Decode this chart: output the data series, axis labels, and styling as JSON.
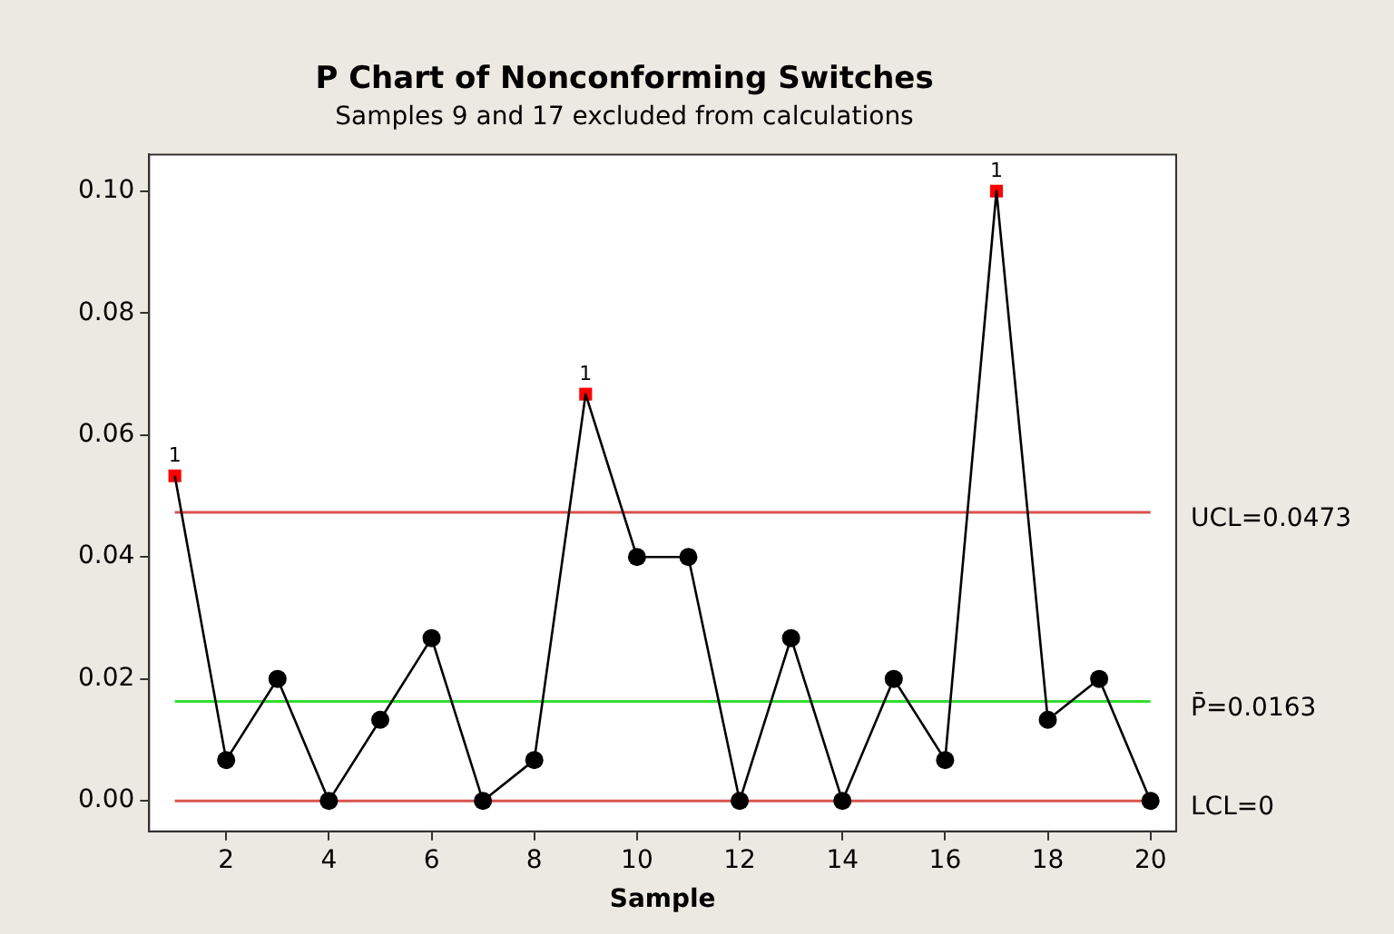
{
  "chart_data": {
    "type": "line",
    "title": "P Chart of Nonconforming Switches",
    "subtitle": "Samples 9 and 17 excluded from calculations",
    "xlabel": "Sample",
    "x": [
      1,
      2,
      3,
      4,
      5,
      6,
      7,
      8,
      9,
      10,
      11,
      12,
      13,
      14,
      15,
      16,
      17,
      18,
      19,
      20
    ],
    "series": [
      {
        "color": "#000000",
        "marker": "none",
        "values": [
          0.0533,
          0.0067,
          0.02,
          0,
          0.0133,
          0.0267,
          0,
          0.0067,
          0.0667,
          0.04,
          0.04,
          0,
          0.0267,
          0,
          0.02,
          0.0067,
          0.1,
          0.0133,
          0.02,
          0
        ]
      },
      {
        "type": "scatter",
        "color": "#000000",
        "marker": "circle",
        "values": [
          null,
          0.0067,
          0.02,
          0,
          0.0133,
          0.0267,
          0,
          0.0067,
          null,
          0.04,
          0.04,
          0,
          0.0267,
          0,
          0.02,
          0.0067,
          null,
          0.0133,
          0.02,
          0
        ]
      },
      {
        "type": "scatter",
        "color": "#ff0000",
        "marker": "square",
        "values": [
          0.0533,
          null,
          null,
          null,
          null,
          null,
          null,
          null,
          0.0667,
          null,
          null,
          null,
          null,
          null,
          null,
          null,
          0.1,
          null,
          null,
          null
        ]
      }
    ],
    "xlim": [
      0.5,
      20.5
    ],
    "xticks": [
      2,
      4,
      6,
      8,
      10,
      12,
      14,
      16,
      18,
      20
    ],
    "ylim": [
      -0.005,
      0.106
    ],
    "yticks": [
      {
        "value": 0,
        "label": "0.00"
      },
      {
        "value": 0.02,
        "label": "0.02"
      },
      {
        "value": 0.04,
        "label": "0.04"
      },
      {
        "value": 0.06,
        "label": "0.06"
      },
      {
        "value": 0.08,
        "label": "0.08"
      },
      {
        "value": 0.1,
        "label": "0.10"
      }
    ],
    "ref_lines": [
      {
        "axis": "y",
        "value": 0.0473,
        "label": "UCL=0.0473",
        "color": "#d9534f"
      },
      {
        "axis": "y",
        "value": 0.0163,
        "label": "P̄=0.0163",
        "color": "#33dd33"
      },
      {
        "axis": "y",
        "value": 0,
        "label": "LCL=0",
        "color": "#d9534f"
      }
    ],
    "annotations": [
      {
        "text": "1",
        "x": 1,
        "y": 0.0533
      },
      {
        "text": "1",
        "x": 9,
        "y": 0.0667
      },
      {
        "text": "1",
        "x": 17,
        "y": 0.1
      }
    ],
    "grid": false,
    "legend": false
  }
}
